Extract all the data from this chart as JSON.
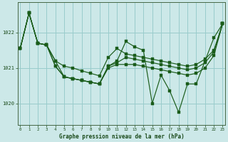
{
  "title": "Graphe pression niveau de la mer (hPa)",
  "bg_color": "#cce8e8",
  "grid_color": "#99cccc",
  "line_color": "#1a5c1a",
  "x_ticks": [
    0,
    1,
    2,
    3,
    4,
    5,
    6,
    7,
    8,
    9,
    10,
    11,
    12,
    13,
    14,
    15,
    16,
    17,
    18,
    19,
    20,
    21,
    22,
    23
  ],
  "y_ticks": [
    1020,
    1021,
    1022
  ],
  "ylim": [
    1019.4,
    1022.85
  ],
  "xlim": [
    -0.3,
    23.3
  ],
  "line1": [
    1021.55,
    1022.55,
    1021.7,
    1021.65,
    1021.2,
    1021.05,
    1021.0,
    1020.92,
    1020.85,
    1020.78,
    1021.3,
    1021.55,
    1021.4,
    1021.35,
    1021.3,
    1021.25,
    1021.2,
    1021.15,
    1021.1,
    1021.05,
    1021.1,
    1021.25,
    1021.5,
    1022.25
  ],
  "line2": [
    1021.55,
    1022.55,
    1021.7,
    1021.65,
    1021.2,
    1020.75,
    1020.7,
    1020.65,
    1020.6,
    1020.55,
    1021.05,
    1021.2,
    1021.75,
    1021.6,
    1021.5,
    1020.0,
    1020.8,
    1020.35,
    1019.75,
    1020.55,
    1020.55,
    1021.2,
    1021.85,
    1022.25
  ],
  "line3": [
    1021.55,
    1022.55,
    1021.7,
    1021.65,
    1021.05,
    1020.75,
    1020.7,
    1020.65,
    1020.6,
    1020.55,
    1021.05,
    1021.15,
    1021.3,
    1021.25,
    1021.2,
    1021.15,
    1021.1,
    1021.05,
    1021.0,
    1020.95,
    1021.0,
    1021.15,
    1021.45,
    1022.25
  ],
  "line4": [
    1021.55,
    1022.55,
    1021.7,
    1021.65,
    1021.05,
    1020.75,
    1020.7,
    1020.65,
    1020.6,
    1020.55,
    1021.0,
    1021.1,
    1021.1,
    1021.1,
    1021.05,
    1021.0,
    1020.95,
    1020.9,
    1020.85,
    1020.8,
    1020.85,
    1021.0,
    1021.35,
    1022.25
  ]
}
